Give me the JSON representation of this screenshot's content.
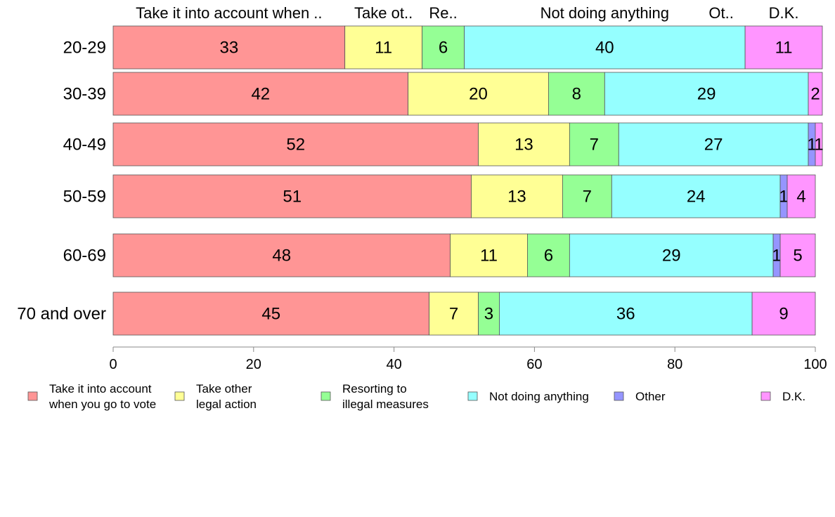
{
  "chart_data": {
    "type": "bar",
    "orientation": "horizontal",
    "stacked": true,
    "categories": [
      "20-29",
      "30-39",
      "40-49",
      "50-59",
      "60-69",
      "70 and over"
    ],
    "series": [
      {
        "name": "Take it into account when you go to vote",
        "legend_label": [
          "Take it into account",
          "when you go to vote"
        ],
        "header_label": "Take it into account when ..",
        "color": "#ff9595",
        "values": [
          33,
          42,
          52,
          51,
          48,
          45
        ]
      },
      {
        "name": "Take other legal action",
        "legend_label": [
          "Take other",
          "legal action"
        ],
        "header_label": "Take ot..",
        "color": "#ffff95",
        "values": [
          11,
          20,
          13,
          13,
          11,
          7
        ]
      },
      {
        "name": "Resorting to illegal measures",
        "legend_label": [
          "Resorting to",
          "illegal measures"
        ],
        "header_label": "Re..",
        "color": "#95ff95",
        "values": [
          6,
          8,
          7,
          7,
          6,
          3
        ]
      },
      {
        "name": "Not doing anything",
        "legend_label": [
          "Not doing anything"
        ],
        "header_label": "Not doing anything",
        "color": "#95ffff",
        "values": [
          40,
          29,
          27,
          24,
          29,
          36
        ]
      },
      {
        "name": "Other",
        "legend_label": [
          "Other"
        ],
        "header_label": "Ot..",
        "color": "#9595ff",
        "values": [
          0,
          0,
          1,
          1,
          1,
          0
        ]
      },
      {
        "name": "D.K.",
        "legend_label": [
          "D.K."
        ],
        "header_label": "D.K.",
        "color": "#ff95ff",
        "values": [
          11,
          2,
          1,
          4,
          5,
          9
        ]
      }
    ],
    "xlim": [
      0,
      100
    ],
    "xticks": [
      0,
      20,
      40,
      60,
      80,
      100
    ],
    "xlabel": "",
    "ylabel": "",
    "legend_position": "bottom",
    "grid": false
  }
}
